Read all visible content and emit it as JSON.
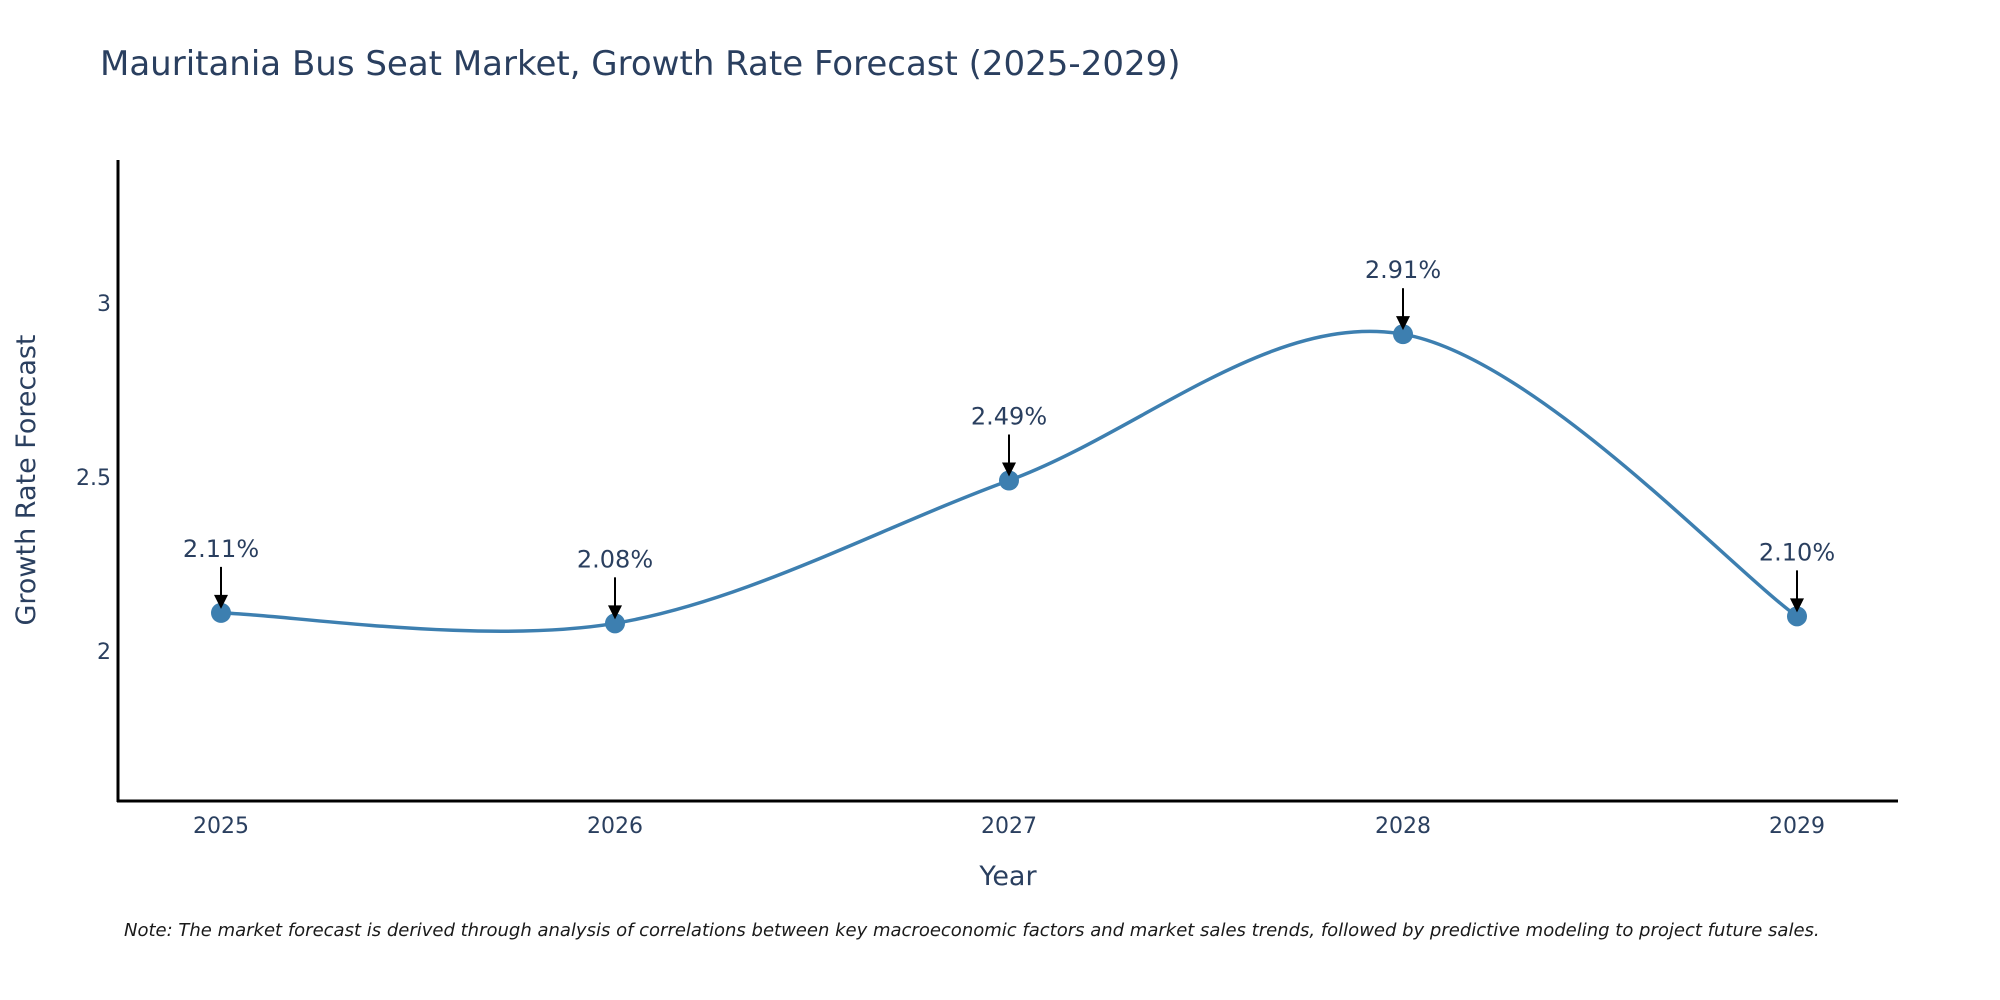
{
  "chart_data": {
    "type": "line",
    "title": "Mauritania Bus Seat Market, Growth Rate Forecast (2025-2029)",
    "xlabel": "Year",
    "ylabel": "Growth Rate Forecast",
    "categories": [
      "2025",
      "2026",
      "2027",
      "2028",
      "2029"
    ],
    "values": [
      2.11,
      2.08,
      2.49,
      2.91,
      2.1
    ],
    "data_labels": [
      "2.11%",
      "2.08%",
      "2.49%",
      "2.91%",
      "2.10%"
    ],
    "yticks": [
      2,
      2.5,
      3
    ],
    "ytick_labels": [
      "2",
      "2.5",
      "3"
    ],
    "ylim": [
      1.57,
      3.41
    ],
    "grid": false,
    "line_color": "#3d7fb0",
    "note": "Note: The market forecast is derived through analysis of correlations between key macroeconomic factors and market sales trends, followed by predictive modeling to project future sales."
  }
}
